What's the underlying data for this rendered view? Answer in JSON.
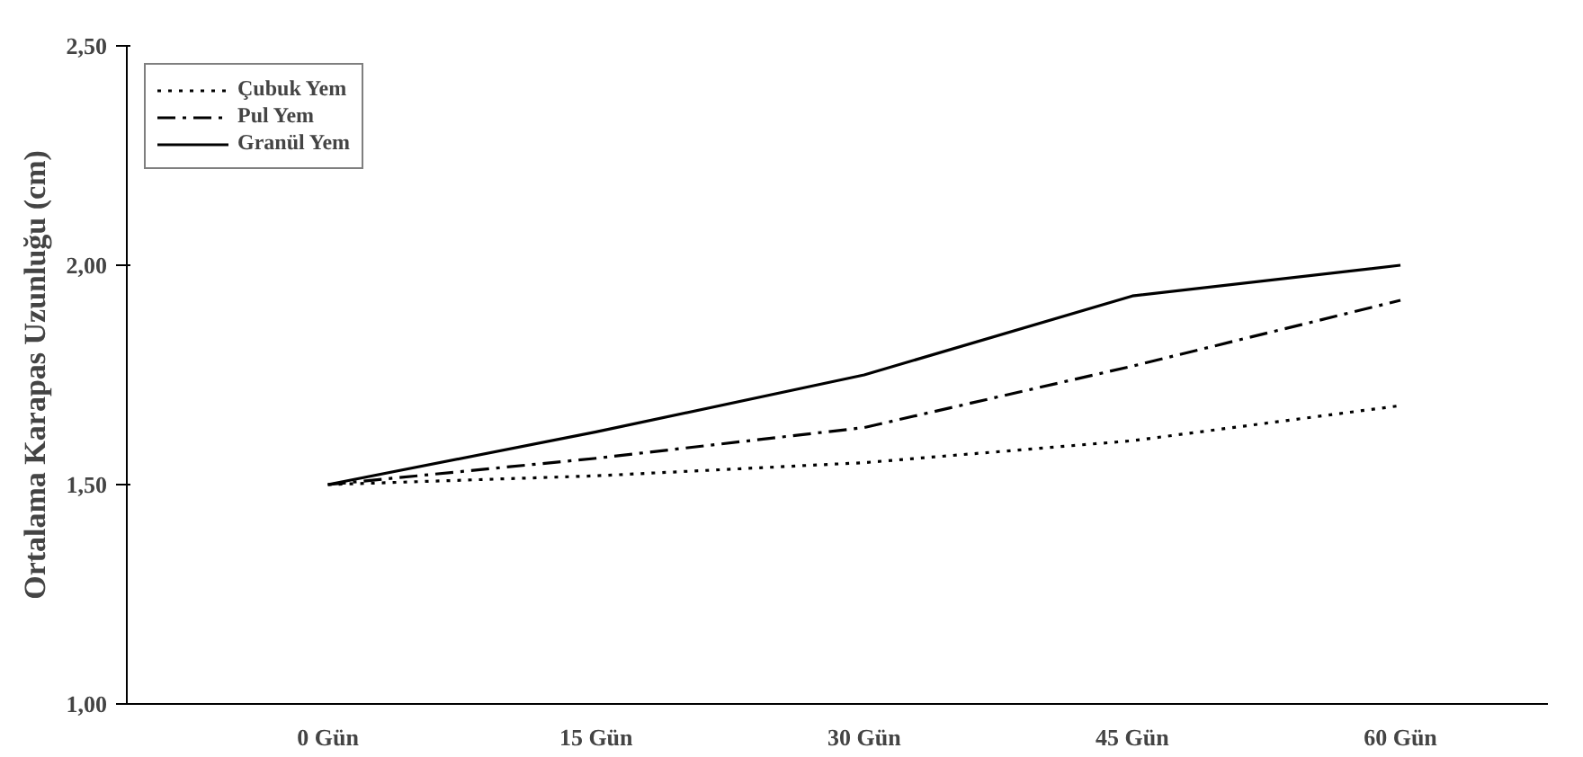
{
  "chart_data": {
    "type": "line",
    "ylabel": "Ortalama Karapas Uzunluğu (cm)",
    "categories": [
      "0 Gün",
      "15 Gün",
      "30 Gün",
      "45 Gün",
      "60 Gün"
    ],
    "series": [
      {
        "name": "Çubuk Yem",
        "color": "#000000",
        "line_style": "dotted",
        "values": [
          1.5,
          1.52,
          1.55,
          1.6,
          1.68
        ]
      },
      {
        "name": "Pul Yem",
        "color": "#000000",
        "line_style": "dashdot",
        "values": [
          1.5,
          1.56,
          1.63,
          1.77,
          1.92
        ]
      },
      {
        "name": "Granül Yem",
        "color": "#000000",
        "line_style": "solid",
        "values": [
          1.5,
          1.62,
          1.75,
          1.93,
          2.0
        ]
      }
    ],
    "ylim": [
      1.0,
      2.5
    ],
    "yticks": [
      {
        "value": 1.0,
        "label": "1,00"
      },
      {
        "value": 1.5,
        "label": "1,50"
      },
      {
        "value": 2.0,
        "label": "2,00"
      },
      {
        "value": 2.5,
        "label": "2,50"
      }
    ],
    "grid": false,
    "legend": "top left",
    "marker": "none"
  }
}
